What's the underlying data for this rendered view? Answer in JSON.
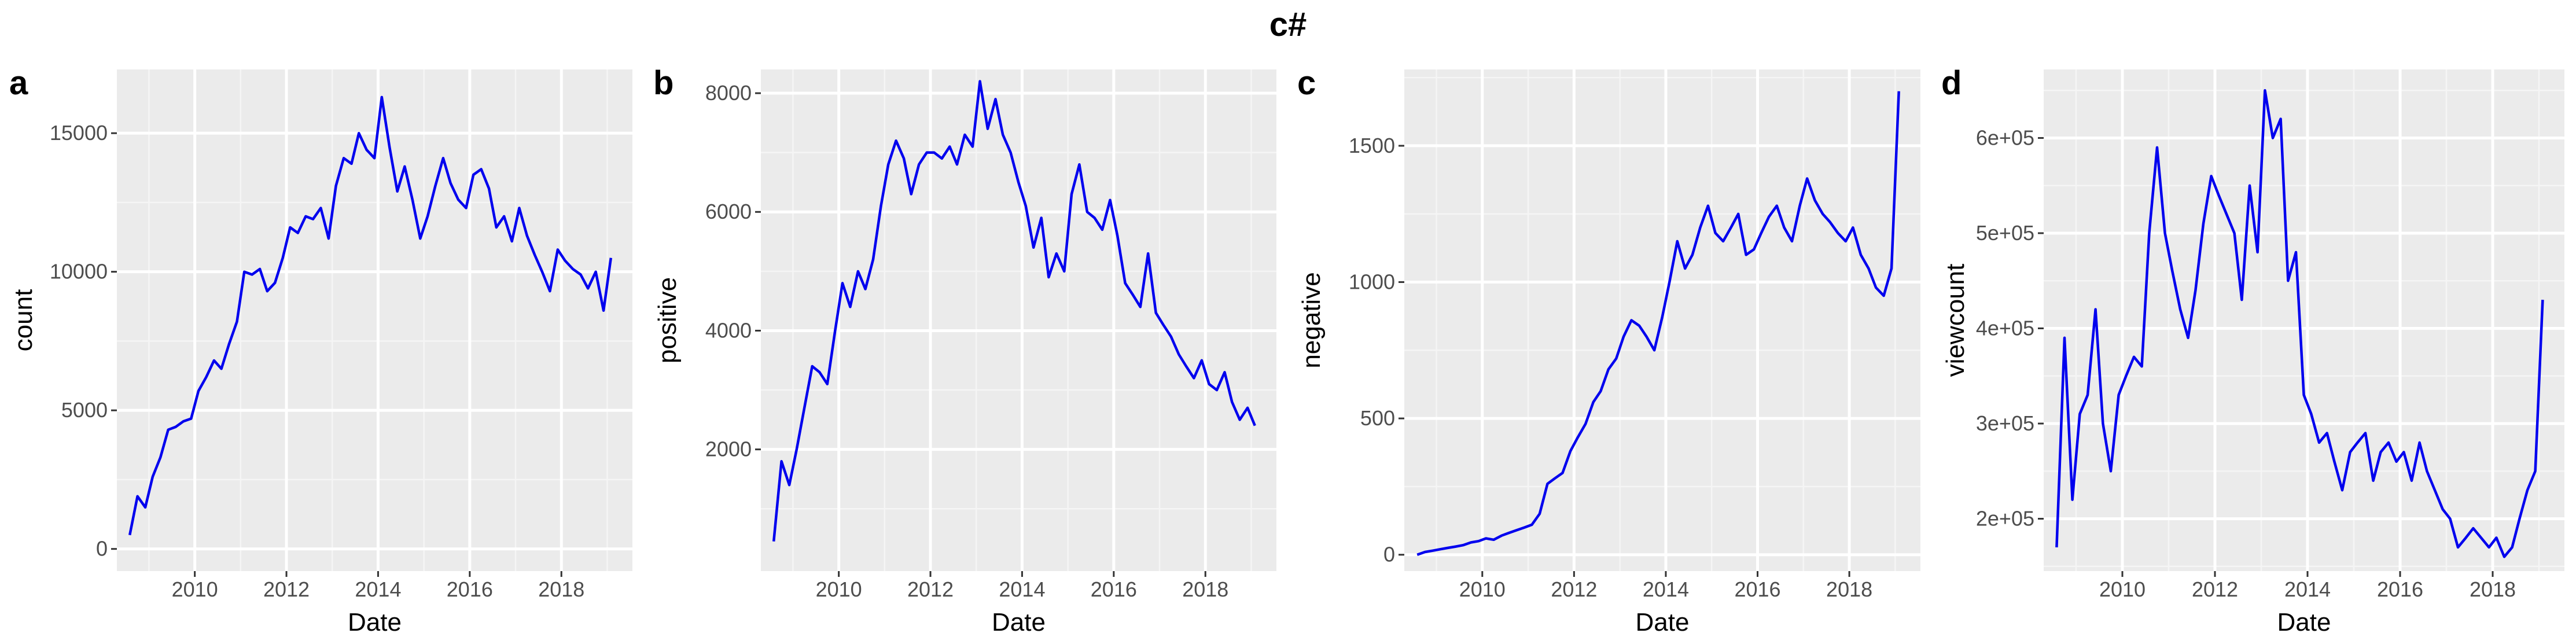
{
  "figure": {
    "title": "c#"
  },
  "chart_data": [
    {
      "type": "line",
      "panel_label": "a",
      "xlabel": "Date",
      "ylabel": "count",
      "xlim": [
        2008.3,
        2019.55
      ],
      "ylim": [
        -800,
        17300
      ],
      "xticks": [
        2010,
        2012,
        2014,
        2016,
        2018
      ],
      "yticks": [
        0,
        5000,
        10000,
        15000
      ],
      "ytick_labels": [
        "0",
        "5000",
        "10000",
        "15000"
      ],
      "grid": true,
      "line_color": "#0000ee",
      "x": [
        2008.58,
        2008.75,
        2008.92,
        2009.08,
        2009.25,
        2009.42,
        2009.58,
        2009.75,
        2009.92,
        2010.08,
        2010.25,
        2010.42,
        2010.58,
        2010.75,
        2010.92,
        2011.08,
        2011.25,
        2011.42,
        2011.58,
        2011.75,
        2011.92,
        2012.08,
        2012.25,
        2012.42,
        2012.58,
        2012.75,
        2012.92,
        2013.08,
        2013.25,
        2013.42,
        2013.58,
        2013.75,
        2013.92,
        2014.08,
        2014.25,
        2014.42,
        2014.58,
        2014.75,
        2014.92,
        2015.08,
        2015.25,
        2015.42,
        2015.58,
        2015.75,
        2015.92,
        2016.08,
        2016.25,
        2016.42,
        2016.58,
        2016.75,
        2016.92,
        2017.08,
        2017.25,
        2017.42,
        2017.58,
        2017.75,
        2017.92,
        2018.08,
        2018.25,
        2018.42,
        2018.58,
        2018.75,
        2018.92,
        2019.08
      ],
      "y": [
        500,
        1900,
        1500,
        2600,
        3300,
        4300,
        4400,
        4600,
        4700,
        5700,
        6200,
        6800,
        6500,
        7400,
        8200,
        10000,
        9900,
        10100,
        9300,
        9600,
        10500,
        11600,
        11400,
        12000,
        11900,
        12300,
        11200,
        13100,
        14100,
        13900,
        15000,
        14400,
        14100,
        16300,
        14500,
        12900,
        13800,
        12600,
        11200,
        12000,
        13100,
        14100,
        13200,
        12600,
        12300,
        13500,
        13700,
        13000,
        11600,
        12000,
        11100,
        12300,
        11300,
        10600,
        10000,
        9300,
        10800,
        10400,
        10100,
        9900,
        9400,
        10000,
        8600,
        10500
      ]
    },
    {
      "type": "line",
      "panel_label": "b",
      "xlabel": "Date",
      "ylabel": "positive",
      "xlim": [
        2008.3,
        2019.55
      ],
      "ylim": [
        -50,
        8400
      ],
      "xticks": [
        2010,
        2012,
        2014,
        2016,
        2018
      ],
      "yticks": [
        2000,
        4000,
        6000,
        8000
      ],
      "ytick_labels": [
        "2000",
        "4000",
        "6000",
        "8000"
      ],
      "grid": true,
      "line_color": "#0000ee",
      "x": [
        2008.58,
        2008.75,
        2008.92,
        2009.08,
        2009.25,
        2009.42,
        2009.58,
        2009.75,
        2009.92,
        2010.08,
        2010.25,
        2010.42,
        2010.58,
        2010.75,
        2010.92,
        2011.08,
        2011.25,
        2011.42,
        2011.58,
        2011.75,
        2011.92,
        2012.08,
        2012.25,
        2012.42,
        2012.58,
        2012.75,
        2012.92,
        2013.08,
        2013.25,
        2013.42,
        2013.58,
        2013.75,
        2013.92,
        2014.08,
        2014.25,
        2014.42,
        2014.58,
        2014.75,
        2014.92,
        2015.08,
        2015.25,
        2015.42,
        2015.58,
        2015.75,
        2015.92,
        2016.08,
        2016.25,
        2016.42,
        2016.58,
        2016.75,
        2016.92,
        2017.08,
        2017.25,
        2017.42,
        2017.58,
        2017.75,
        2017.92,
        2018.08,
        2018.25,
        2018.42,
        2018.58,
        2018.75,
        2018.92,
        2019.08
      ],
      "y": [
        450,
        1800,
        1400,
        2000,
        2700,
        3400,
        3300,
        3100,
        4000,
        4800,
        4400,
        5000,
        4700,
        5200,
        6100,
        6800,
        7200,
        6900,
        6300,
        6800,
        7000,
        7000,
        6900,
        7100,
        6800,
        7300,
        7100,
        8200,
        7400,
        7900,
        7300,
        7000,
        6500,
        6100,
        5400,
        5900,
        4900,
        5300,
        5000,
        6300,
        6800,
        6000,
        5900,
        5700,
        6200,
        5600,
        4800,
        4600,
        4400,
        5300,
        4300,
        4100,
        3900,
        3600,
        3400,
        3200,
        3500,
        3100,
        3000,
        3300,
        2800,
        2500,
        2700,
        2400
      ]
    },
    {
      "type": "line",
      "panel_label": "c",
      "xlabel": "Date",
      "ylabel": "negative",
      "xlim": [
        2008.3,
        2019.55
      ],
      "ylim": [
        -60,
        1780
      ],
      "xticks": [
        2010,
        2012,
        2014,
        2016,
        2018
      ],
      "yticks": [
        0,
        500,
        1000,
        1500
      ],
      "ytick_labels": [
        "0",
        "500",
        "1000",
        "1500"
      ],
      "grid": true,
      "line_color": "#0000ee",
      "x": [
        2008.58,
        2008.75,
        2008.92,
        2009.08,
        2009.25,
        2009.42,
        2009.58,
        2009.75,
        2009.92,
        2010.08,
        2010.25,
        2010.42,
        2010.58,
        2010.75,
        2010.92,
        2011.08,
        2011.25,
        2011.42,
        2011.58,
        2011.75,
        2011.92,
        2012.08,
        2012.25,
        2012.42,
        2012.58,
        2012.75,
        2012.92,
        2013.08,
        2013.25,
        2013.42,
        2013.58,
        2013.75,
        2013.92,
        2014.08,
        2014.25,
        2014.42,
        2014.58,
        2014.75,
        2014.92,
        2015.08,
        2015.25,
        2015.42,
        2015.58,
        2015.75,
        2015.92,
        2016.08,
        2016.25,
        2016.42,
        2016.58,
        2016.75,
        2016.92,
        2017.08,
        2017.25,
        2017.42,
        2017.58,
        2017.75,
        2017.92,
        2018.08,
        2018.25,
        2018.42,
        2018.58,
        2018.75,
        2018.92,
        2019.08
      ],
      "y": [
        0,
        10,
        15,
        20,
        25,
        30,
        35,
        45,
        50,
        60,
        55,
        70,
        80,
        90,
        100,
        110,
        150,
        260,
        280,
        300,
        380,
        430,
        480,
        560,
        600,
        680,
        720,
        800,
        860,
        840,
        800,
        750,
        870,
        1000,
        1150,
        1050,
        1100,
        1200,
        1280,
        1180,
        1150,
        1200,
        1250,
        1100,
        1120,
        1180,
        1240,
        1280,
        1200,
        1150,
        1280,
        1380,
        1300,
        1250,
        1220,
        1180,
        1150,
        1200,
        1100,
        1050,
        980,
        950,
        1050,
        1700
      ]
    },
    {
      "type": "line",
      "panel_label": "d",
      "xlabel": "Date",
      "ylabel": "viewcount",
      "xlim": [
        2008.3,
        2019.55
      ],
      "ylim": [
        145000,
        672000
      ],
      "xticks": [
        2010,
        2012,
        2014,
        2016,
        2018
      ],
      "yticks": [
        200000,
        300000,
        400000,
        500000,
        600000
      ],
      "ytick_labels": [
        "2e+05",
        "3e+05",
        "4e+05",
        "5e+05",
        "6e+05"
      ],
      "grid": true,
      "line_color": "#0000ee",
      "x": [
        2008.58,
        2008.75,
        2008.92,
        2009.08,
        2009.25,
        2009.42,
        2009.58,
        2009.75,
        2009.92,
        2010.08,
        2010.25,
        2010.42,
        2010.58,
        2010.75,
        2010.92,
        2011.08,
        2011.25,
        2011.42,
        2011.58,
        2011.75,
        2011.92,
        2012.08,
        2012.25,
        2012.42,
        2012.58,
        2012.75,
        2012.92,
        2013.08,
        2013.25,
        2013.42,
        2013.58,
        2013.75,
        2013.92,
        2014.08,
        2014.25,
        2014.42,
        2014.58,
        2014.75,
        2014.92,
        2015.08,
        2015.25,
        2015.42,
        2015.58,
        2015.75,
        2015.92,
        2016.08,
        2016.25,
        2016.42,
        2016.58,
        2016.75,
        2016.92,
        2017.08,
        2017.25,
        2017.42,
        2017.58,
        2017.75,
        2017.92,
        2018.08,
        2018.25,
        2018.42,
        2018.58,
        2018.75,
        2018.92,
        2019.08
      ],
      "y": [
        170000,
        390000,
        220000,
        310000,
        330000,
        420000,
        300000,
        250000,
        330000,
        350000,
        370000,
        360000,
        500000,
        590000,
        500000,
        460000,
        420000,
        390000,
        440000,
        510000,
        560000,
        540000,
        520000,
        500000,
        430000,
        550000,
        480000,
        650000,
        600000,
        620000,
        450000,
        480000,
        330000,
        310000,
        280000,
        290000,
        260000,
        230000,
        270000,
        280000,
        290000,
        240000,
        270000,
        280000,
        260000,
        270000,
        240000,
        280000,
        250000,
        230000,
        210000,
        200000,
        170000,
        180000,
        190000,
        180000,
        170000,
        180000,
        160000,
        170000,
        200000,
        230000,
        250000,
        430000
      ]
    }
  ]
}
